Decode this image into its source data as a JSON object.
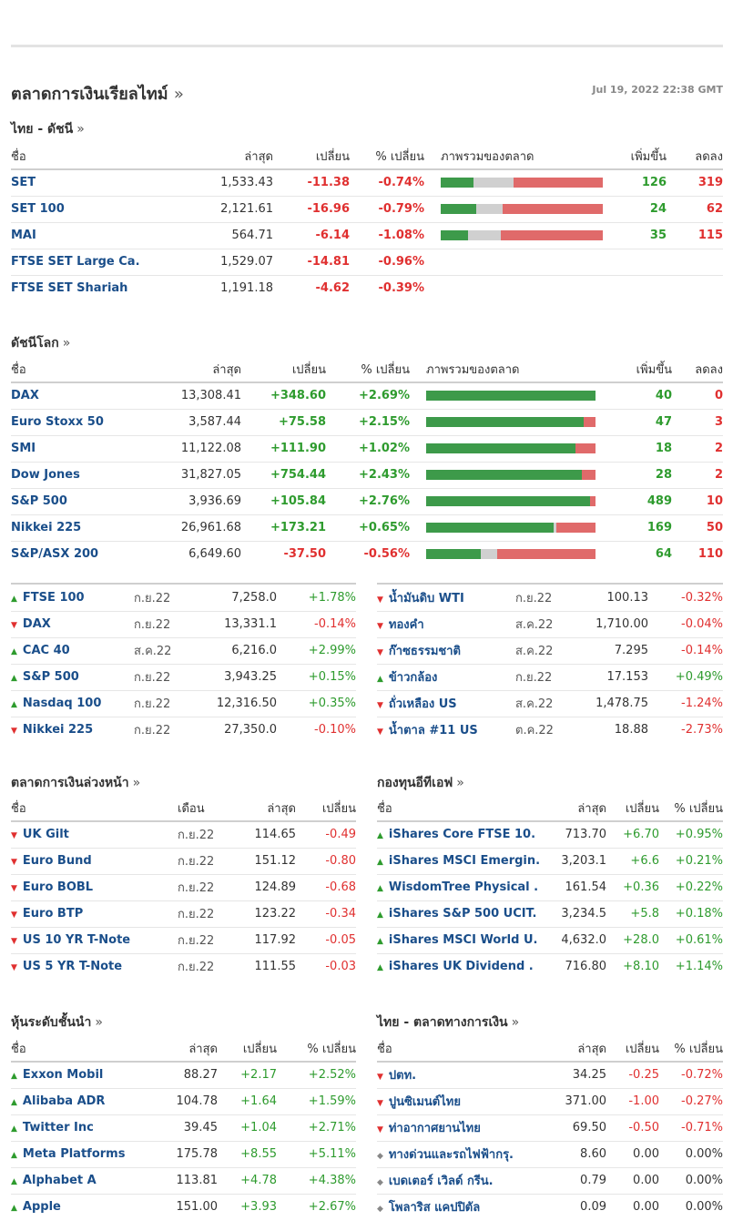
{
  "page": {
    "title": "ตลาดการเงินเรียลไทม์",
    "title_arrow": "»",
    "datetime": "Jul 19, 2022 22:38 GMT"
  },
  "colors": {
    "up": "#2e9b2e",
    "down": "#e03030",
    "name": "#1a4e8a",
    "bar_up": "#3d9a4a",
    "bar_unch": "#d0d0d0",
    "bar_down": "#e06a6a"
  },
  "thai_indices": {
    "title": "ไทย - ดัชนี",
    "arrow": "»",
    "headers": {
      "name": "ชื่อ",
      "last": "ล่าสุด",
      "change": "เปลี่ยน",
      "pct": "% เปลี่ยน",
      "overview": "ภาพรวมของตลาด",
      "adv": "เพิ่มขึ้น",
      "dec": "ลดลง"
    },
    "rows": [
      {
        "name": "SET",
        "last": "1,533.43",
        "change": "-11.38",
        "pct": "-0.74%",
        "adv": "126",
        "dec": "319",
        "bar": [
          0.2,
          0.25,
          0.55
        ]
      },
      {
        "name": "SET 100",
        "last": "2,121.61",
        "change": "-16.96",
        "pct": "-0.79%",
        "adv": "24",
        "dec": "62",
        "bar": [
          0.22,
          0.16,
          0.62
        ]
      },
      {
        "name": "MAI",
        "last": "564.71",
        "change": "-6.14",
        "pct": "-1.08%",
        "adv": "35",
        "dec": "115",
        "bar": [
          0.17,
          0.2,
          0.63
        ]
      },
      {
        "name": "FTSE SET Large Ca.",
        "last": "1,529.07",
        "change": "-14.81",
        "pct": "-0.96%",
        "adv": "",
        "dec": "",
        "bar": null
      },
      {
        "name": "FTSE SET Shariah",
        "last": "1,191.18",
        "change": "-4.62",
        "pct": "-0.39%",
        "adv": "",
        "dec": "",
        "bar": null
      }
    ]
  },
  "world_indices": {
    "title": "ดัชนีโลก",
    "arrow": "»",
    "headers": {
      "name": "ชื่อ",
      "last": "ล่าสุด",
      "change": "เปลี่ยน",
      "pct": "% เปลี่ยน",
      "overview": "ภาพรวมของตลาด",
      "adv": "เพิ่มขึ้น",
      "dec": "ลดลง"
    },
    "rows": [
      {
        "name": "DAX",
        "last": "13,308.41",
        "change": "+348.60",
        "pct": "+2.69%",
        "adv": "40",
        "dec": "0",
        "bar": [
          1.0,
          0,
          0
        ]
      },
      {
        "name": "Euro Stoxx 50",
        "last": "3,587.44",
        "change": "+75.58",
        "pct": "+2.15%",
        "adv": "47",
        "dec": "3",
        "bar": [
          0.93,
          0,
          0.07
        ]
      },
      {
        "name": "SMI",
        "last": "11,122.08",
        "change": "+111.90",
        "pct": "+1.02%",
        "adv": "18",
        "dec": "2",
        "bar": [
          0.88,
          0,
          0.12
        ]
      },
      {
        "name": "Dow Jones",
        "last": "31,827.05",
        "change": "+754.44",
        "pct": "+2.43%",
        "adv": "28",
        "dec": "2",
        "bar": [
          0.92,
          0,
          0.08
        ]
      },
      {
        "name": "S&P 500",
        "last": "3,936.69",
        "change": "+105.84",
        "pct": "+2.76%",
        "adv": "489",
        "dec": "10",
        "bar": [
          0.97,
          0,
          0.03
        ]
      },
      {
        "name": "Nikkei 225",
        "last": "26,961.68",
        "change": "+173.21",
        "pct": "+0.65%",
        "adv": "169",
        "dec": "50",
        "bar": [
          0.75,
          0.02,
          0.23
        ]
      },
      {
        "name": "S&P/ASX 200",
        "last": "6,649.60",
        "change": "-37.50",
        "pct": "-0.56%",
        "adv": "64",
        "dec": "110",
        "bar": [
          0.32,
          0.1,
          0.58
        ]
      }
    ]
  },
  "index_futures": [
    {
      "dir": "up",
      "name": "FTSE 100",
      "month": "ก.ย.22",
      "last": "7,258.0",
      "pct": "+1.78%"
    },
    {
      "dir": "down",
      "name": "DAX",
      "month": "ก.ย.22",
      "last": "13,331.1",
      "pct": "-0.14%"
    },
    {
      "dir": "up",
      "name": "CAC 40",
      "month": "ส.ค.22",
      "last": "6,216.0",
      "pct": "+2.99%"
    },
    {
      "dir": "up",
      "name": "S&P 500",
      "month": "ก.ย.22",
      "last": "3,943.25",
      "pct": "+0.15%"
    },
    {
      "dir": "up",
      "name": "Nasdaq 100",
      "month": "ก.ย.22",
      "last": "12,316.50",
      "pct": "+0.35%"
    },
    {
      "dir": "down",
      "name": "Nikkei 225",
      "month": "ก.ย.22",
      "last": "27,350.0",
      "pct": "-0.10%"
    }
  ],
  "commodities": [
    {
      "dir": "down",
      "name": "น้ำมันดิบ WTI",
      "month": "ก.ย.22",
      "last": "100.13",
      "pct": "-0.32%"
    },
    {
      "dir": "down",
      "name": "ทองคำ",
      "month": "ส.ค.22",
      "last": "1,710.00",
      "pct": "-0.04%"
    },
    {
      "dir": "down",
      "name": "ก๊าซธรรมชาติ",
      "month": "ส.ค.22",
      "last": "7.295",
      "pct": "-0.14%"
    },
    {
      "dir": "up",
      "name": "ข้าวกล้อง",
      "month": "ก.ย.22",
      "last": "17.153",
      "pct": "+0.49%"
    },
    {
      "dir": "down",
      "name": "ถั่วเหลือง US",
      "month": "ส.ค.22",
      "last": "1,478.75",
      "pct": "-1.24%"
    },
    {
      "dir": "down",
      "name": "น้ำตาล #11 US",
      "month": "ต.ค.22",
      "last": "18.88",
      "pct": "-2.73%"
    }
  ],
  "bond_futures": {
    "title": "ตลาดการเงินล่วงหน้า",
    "arrow": "»",
    "headers": {
      "name": "ชื่อ",
      "month": "เดือน",
      "last": "ล่าสุด",
      "change": "เปลี่ยน"
    },
    "rows": [
      {
        "dir": "down",
        "name": "UK Gilt",
        "month": "ก.ย.22",
        "last": "114.65",
        "change": "-0.49"
      },
      {
        "dir": "down",
        "name": "Euro Bund",
        "month": "ก.ย.22",
        "last": "151.12",
        "change": "-0.80"
      },
      {
        "dir": "down",
        "name": "Euro BOBL",
        "month": "ก.ย.22",
        "last": "124.89",
        "change": "-0.68"
      },
      {
        "dir": "down",
        "name": "Euro BTP",
        "month": "ก.ย.22",
        "last": "123.22",
        "change": "-0.34"
      },
      {
        "dir": "down",
        "name": "US 10 YR T-Note",
        "month": "ก.ย.22",
        "last": "117.92",
        "change": "-0.05"
      },
      {
        "dir": "down",
        "name": "US 5 YR T-Note",
        "month": "ก.ย.22",
        "last": "111.55",
        "change": "-0.03"
      }
    ]
  },
  "etfs": {
    "title": "กองทุนอีทีเอฟ",
    "arrow": "»",
    "headers": {
      "name": "ชื่อ",
      "last": "ล่าสุด",
      "change": "เปลี่ยน",
      "pct": "% เปลี่ยน"
    },
    "rows": [
      {
        "dir": "up",
        "name": "iShares Core FTSE 10.",
        "last": "713.70",
        "change": "+6.70",
        "pct": "+0.95%"
      },
      {
        "dir": "up",
        "name": "iShares MSCI Emergin.",
        "last": "3,203.1",
        "change": "+6.6",
        "pct": "+0.21%"
      },
      {
        "dir": "up",
        "name": "WisdomTree Physical .",
        "last": "161.54",
        "change": "+0.36",
        "pct": "+0.22%"
      },
      {
        "dir": "up",
        "name": "iShares S&P 500 UCIT.",
        "last": "3,234.5",
        "change": "+5.8",
        "pct": "+0.18%"
      },
      {
        "dir": "up",
        "name": "iShares MSCI World U.",
        "last": "4,632.0",
        "change": "+28.0",
        "pct": "+0.61%"
      },
      {
        "dir": "up",
        "name": "iShares UK Dividend .",
        "last": "716.80",
        "change": "+8.10",
        "pct": "+1.14%"
      }
    ]
  },
  "leading_stocks": {
    "title": "หุ้นระดับชั้นนำ",
    "arrow": "»",
    "headers": {
      "name": "ชื่อ",
      "last": "ล่าสุด",
      "change": "เปลี่ยน",
      "pct": "% เปลี่ยน"
    },
    "rows": [
      {
        "dir": "up",
        "name": "Exxon Mobil",
        "last": "88.27",
        "change": "+2.17",
        "pct": "+2.52%"
      },
      {
        "dir": "up",
        "name": "Alibaba ADR",
        "last": "104.78",
        "change": "+1.64",
        "pct": "+1.59%"
      },
      {
        "dir": "up",
        "name": "Twitter Inc",
        "last": "39.45",
        "change": "+1.04",
        "pct": "+2.71%"
      },
      {
        "dir": "up",
        "name": "Meta Platforms",
        "last": "175.78",
        "change": "+8.55",
        "pct": "+5.11%"
      },
      {
        "dir": "up",
        "name": "Alphabet A",
        "last": "113.81",
        "change": "+4.78",
        "pct": "+4.38%"
      },
      {
        "dir": "up",
        "name": "Apple",
        "last": "151.00",
        "change": "+3.93",
        "pct": "+2.67%"
      }
    ]
  },
  "thai_market": {
    "title": "ไทย - ตลาดทางการเงิน",
    "arrow": "»",
    "headers": {
      "name": "ชื่อ",
      "last": "ล่าสุด",
      "change": "เปลี่ยน",
      "pct": "% เปลี่ยน"
    },
    "rows": [
      {
        "dir": "down",
        "name": "ปตท.",
        "last": "34.25",
        "change": "-0.25",
        "pct": "-0.72%"
      },
      {
        "dir": "down",
        "name": "ปูนซิเมนต์ไทย",
        "last": "371.00",
        "change": "-1.00",
        "pct": "-0.27%"
      },
      {
        "dir": "down",
        "name": "ท่าอากาศยานไทย",
        "last": "69.50",
        "change": "-0.50",
        "pct": "-0.71%"
      },
      {
        "dir": "none",
        "name": "ทางด่วนและรถไฟฟ้ากรุ.",
        "last": "8.60",
        "change": "0.00",
        "pct": "0.00%"
      },
      {
        "dir": "none",
        "name": "เบดเตอร์ เวิลด์ กรีน.",
        "last": "0.79",
        "change": "0.00",
        "pct": "0.00%"
      },
      {
        "dir": "none",
        "name": "โพลาริส แคปปิตัล",
        "last": "0.09",
        "change": "0.00",
        "pct": "0.00%"
      }
    ]
  }
}
